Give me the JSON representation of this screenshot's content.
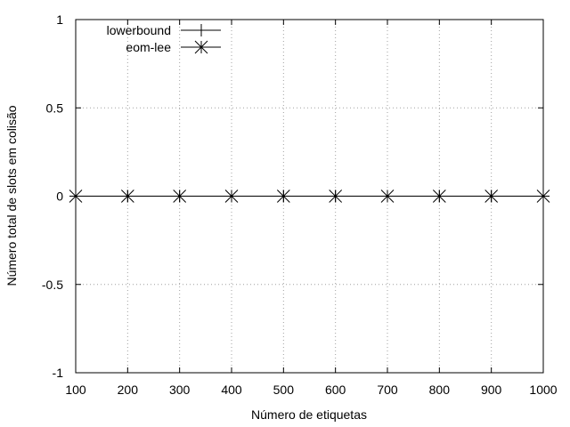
{
  "chart_data": {
    "type": "line",
    "title": "",
    "xlabel": "Número de etiquetas",
    "ylabel": "Número total de slots em colisão",
    "xlim": [
      100,
      1000
    ],
    "ylim": [
      -1,
      1
    ],
    "x_ticks": [
      "100",
      "200",
      "300",
      "400",
      "500",
      "600",
      "700",
      "800",
      "900",
      "1000"
    ],
    "y_ticks": [
      "-1",
      "-0.5",
      "0",
      "0.5",
      "1"
    ],
    "grid": true,
    "legend_position": "top-left",
    "series": [
      {
        "name": "lowerbound",
        "marker": "plus",
        "color": "#000000",
        "x": [
          100,
          200,
          300,
          400,
          500,
          600,
          700,
          800,
          900,
          1000
        ],
        "y": [
          0,
          0,
          0,
          0,
          0,
          0,
          0,
          0,
          0,
          0
        ]
      },
      {
        "name": "eom-lee",
        "marker": "star",
        "color": "#000000",
        "x": [
          100,
          200,
          300,
          400,
          500,
          600,
          700,
          800,
          900,
          1000
        ],
        "y": [
          0,
          0,
          0,
          0,
          0,
          0,
          0,
          0,
          0,
          0
        ]
      }
    ]
  }
}
